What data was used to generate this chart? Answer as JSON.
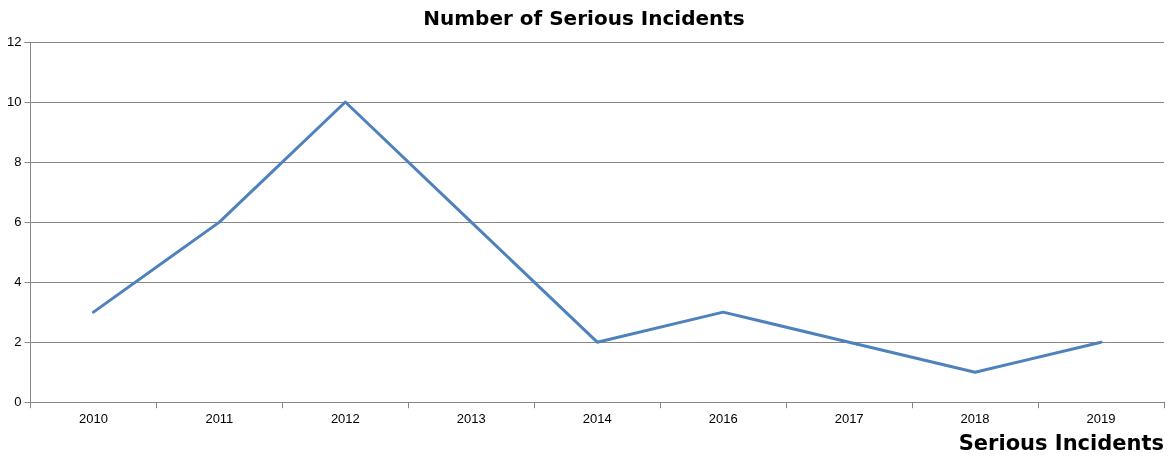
{
  "chart_data": {
    "type": "line",
    "title": "Number of Serious Incidents",
    "xlabel": "Serious Incidents",
    "categories": [
      "2010",
      "2011",
      "2012",
      "2013",
      "2014",
      "2016",
      "2017",
      "2018",
      "2019"
    ],
    "series": [
      {
        "color": "#4f81bd",
        "values": [
          3,
          6,
          10,
          6,
          2,
          3,
          2,
          1,
          2
        ]
      }
    ],
    "ylim": [
      0,
      12
    ],
    "yticks": [
      0,
      2,
      4,
      6,
      8,
      10,
      12
    ],
    "grid": "y",
    "legend": false,
    "marker": "none",
    "line_style": "solid"
  }
}
